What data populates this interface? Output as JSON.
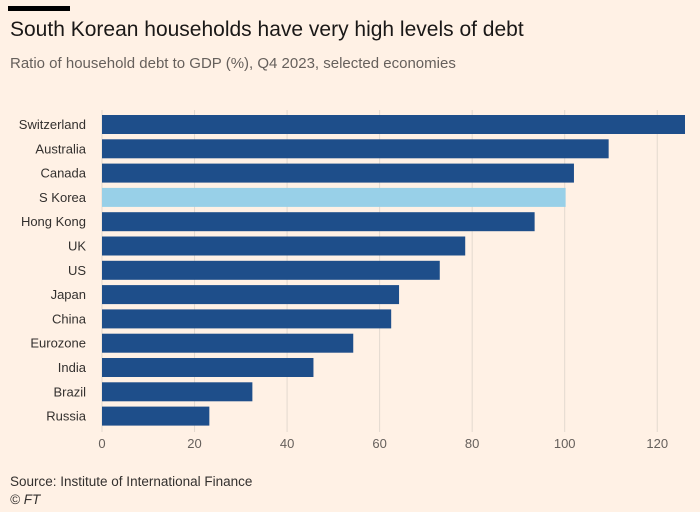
{
  "header": {
    "title": "South Korean households have very high levels of debt",
    "subtitle": "Ratio of household debt to GDP (%), Q4 2023, selected economies"
  },
  "footer": {
    "source": "Source: Institute of International Finance",
    "copyright": "© FT"
  },
  "colors": {
    "bar": "#1e4e8a",
    "highlight": "#98d0e8",
    "grid": "#e3d9cf",
    "background": "#fff1e5"
  },
  "chart_data": {
    "type": "bar",
    "orientation": "horizontal",
    "title": "South Korean households have very high levels of debt",
    "subtitle": "Ratio of household debt to GDP (%), Q4 2023, selected economies",
    "xlabel": "",
    "ylabel": "",
    "xlim": [
      0,
      126
    ],
    "xticks": [
      0,
      20,
      40,
      60,
      80,
      100,
      120
    ],
    "grid": true,
    "highlight": "S Korea",
    "categories": [
      "Switzerland",
      "Australia",
      "Canada",
      "S Korea",
      "Hong Kong",
      "UK",
      "US",
      "Japan",
      "China",
      "Eurozone",
      "India",
      "Brazil",
      "Russia"
    ],
    "values": [
      126,
      109.5,
      102,
      100.2,
      93.5,
      78.5,
      73,
      64.2,
      62.5,
      54.3,
      45.7,
      32.5,
      23.2
    ]
  }
}
